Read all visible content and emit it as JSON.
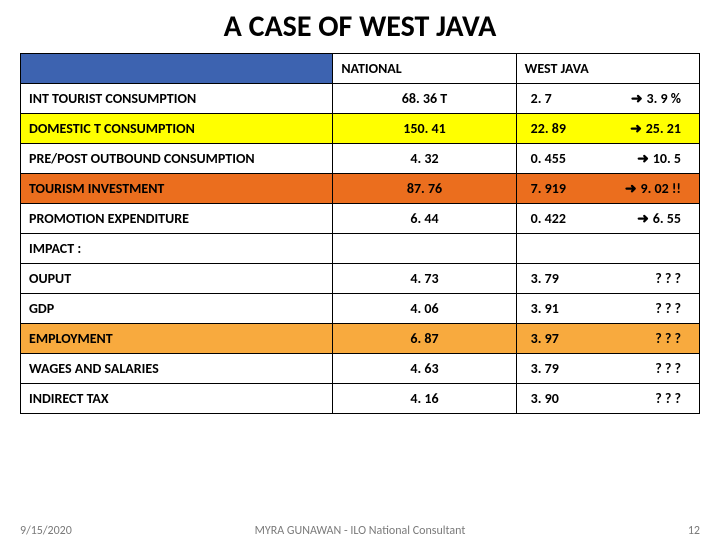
{
  "title": "A CASE  OF WEST JAVA",
  "headers": {
    "national": "NATIONAL",
    "westjava": "WEST JAVA"
  },
  "rows": [
    {
      "label": "INT  TOURIST CONSUMPTION",
      "nat": "68. 36      T",
      "wj_left": "2. 7",
      "wj_right": "3. 9 %",
      "arrow": true,
      "cls": ""
    },
    {
      "label": "DOMESTIC T CONSUMPTION",
      "nat": "150. 41",
      "wj_left": "22. 89",
      "wj_right": "25. 21",
      "arrow": true,
      "cls": "row-yellow"
    },
    {
      "label": "PRE/POST  OUTBOUND CONSUMPTION",
      "nat": "4. 32",
      "wj_left": "0. 455",
      "wj_right": "10. 5",
      "arrow": true,
      "cls": ""
    },
    {
      "label": "TOURISM INVESTMENT",
      "nat": "87. 76",
      "wj_left": "7. 919",
      "wj_right": "9. 02  !!",
      "arrow": true,
      "cls": "row-orange1"
    },
    {
      "label": "PROMOTION EXPENDITURE",
      "nat": "6. 44",
      "wj_left": "0. 422",
      "wj_right": "6. 55",
      "arrow": true,
      "cls": ""
    },
    {
      "label": " IMPACT :",
      "nat": "",
      "wj_left": "",
      "wj_right": "",
      "arrow": false,
      "cls": ""
    },
    {
      "label": "OUPUT",
      "nat": "4. 73",
      "wj_left": "3. 79",
      "wj_right": "? ? ?",
      "arrow": false,
      "cls": ""
    },
    {
      "label": "GDP",
      "nat": "4. 06",
      "wj_left": "3. 91",
      "wj_right": "? ? ?",
      "arrow": false,
      "cls": ""
    },
    {
      "label": "EMPLOYMENT",
      "nat": "6. 87",
      "wj_left": "3. 97",
      "wj_right": "? ? ?",
      "arrow": false,
      "cls": "row-orange2"
    },
    {
      "label": "WAGES AND SALARIES",
      "nat": "4. 63",
      "wj_left": "3. 79",
      "wj_right": "? ? ?",
      "arrow": false,
      "cls": ""
    },
    {
      "label": "INDIRECT TAX",
      "nat": "4. 16",
      "wj_left": "3. 90",
      "wj_right": "? ? ?",
      "arrow": false,
      "cls": ""
    }
  ],
  "footer": {
    "date": "9/15/2020",
    "center": "MYRA GUNAWAN - ILO National Consultant",
    "page": "12"
  },
  "colors": {
    "header_blank": "#3d63b0",
    "yellow": "#ffff00",
    "orange1": "#eb6e1e",
    "orange2": "#f8aa3e"
  }
}
